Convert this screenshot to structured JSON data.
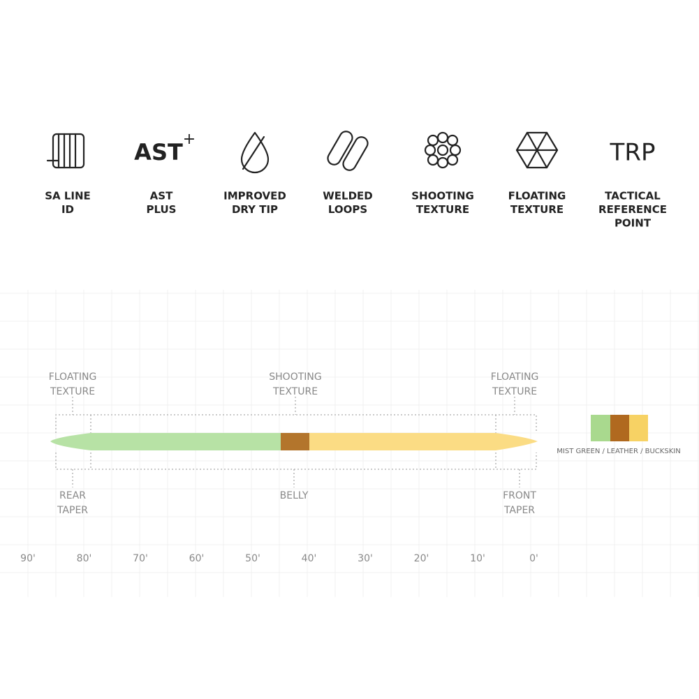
{
  "features": [
    {
      "label": [
        "SA LINE",
        "ID"
      ]
    },
    {
      "icon_text": "AST",
      "icon_sup": "+",
      "label": [
        "AST",
        "PLUS"
      ]
    },
    {
      "label": [
        "IMPROVED",
        "DRY TIP"
      ]
    },
    {
      "label": [
        "WELDED",
        "LOOPS"
      ]
    },
    {
      "label": [
        "SHOOTING",
        "TEXTURE"
      ]
    },
    {
      "label": [
        "FLOATING",
        "TEXTURE"
      ]
    },
    {
      "icon_text": "TRP",
      "label": [
        "TACTICAL",
        "REFERENCE",
        "POINT"
      ]
    }
  ],
  "diagram": {
    "top_labels": [
      [
        "FLOATING",
        "TEXTURE"
      ],
      [
        "SHOOTING",
        "TEXTURE"
      ],
      [
        "FLOATING",
        "TEXTURE"
      ]
    ],
    "bottom_labels": [
      [
        "REAR",
        "TAPER"
      ],
      [
        "BELLY"
      ],
      [
        "FRONT",
        "TAPER"
      ]
    ],
    "scale": [
      "90'",
      "80'",
      "70'",
      "60'",
      "50'",
      "40'",
      "30'",
      "20'",
      "10'",
      "0'"
    ],
    "color_name": "MIST GREEN / LEATHER / BUCKSKIN"
  }
}
